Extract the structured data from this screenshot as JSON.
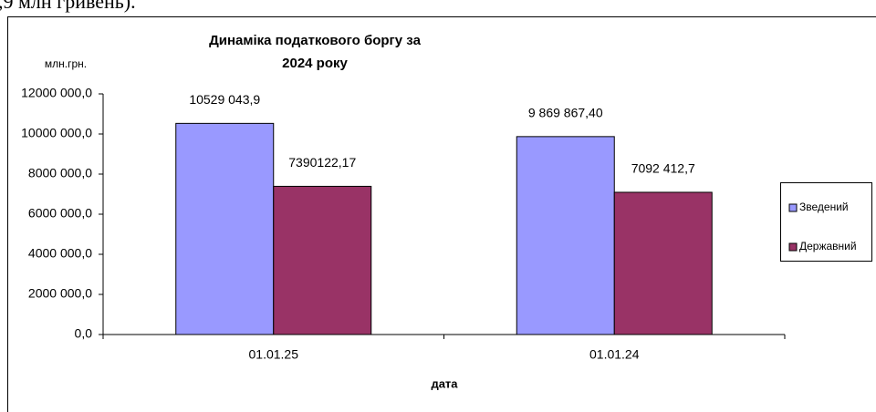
{
  "header_fragment": ",9 млн гривень).",
  "chart_data": {
    "type": "bar",
    "title": [
      "Динаміка податкового боргу за",
      "2024 року"
    ],
    "ylabel": "млн.грн.",
    "xlabel": "дата",
    "categories": [
      "01.01.25",
      "01.01.24"
    ],
    "series": [
      {
        "name": "Зведений",
        "color": "#9999ff",
        "values": [
          10529043.9,
          9869867.4
        ],
        "value_labels": [
          "10529 043,9",
          "9 869 867,40"
        ]
      },
      {
        "name": "Державний",
        "color": "#993366",
        "values": [
          7390122.17,
          7092412.7
        ],
        "value_labels": [
          "7390122,17",
          "7092 412,7"
        ]
      }
    ],
    "ylim": [
      0,
      12000000
    ],
    "yticks": [
      {
        "value": 0,
        "label": "0,0"
      },
      {
        "value": 2000000,
        "label": "2000 000,0"
      },
      {
        "value": 4000000,
        "label": "4000 000,0"
      },
      {
        "value": 6000000,
        "label": "6000 000,0"
      },
      {
        "value": 8000000,
        "label": "8000 000,0"
      },
      {
        "value": 10000000,
        "label": "10000 000,0"
      },
      {
        "value": 12000000,
        "label": "12000 000,0"
      }
    ],
    "legend": "right",
    "grid": false
  }
}
